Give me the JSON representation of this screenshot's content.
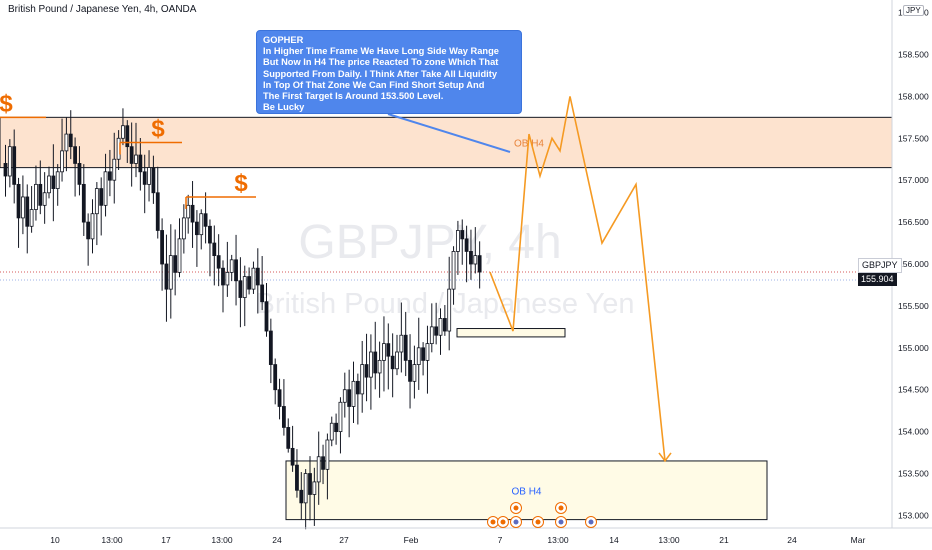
{
  "header": {
    "symbol_title": "British Pound / Japanese Yen, 4h, OANDA",
    "currency_badge": "JPY"
  },
  "watermark": {
    "ticker": "GBPJPY, 4h",
    "name": "British Pound / Japanese Yen"
  },
  "note": {
    "lines": [
      "GOPHER",
      "In Higher Time Frame We Have Long Side Way Range",
      "But Now In H4 The price Reacted To zone Which That",
      "Supported From Daily. I Think After Take All Liquidity",
      "In Top Of That Zone We Can Find  Short Setup And",
      "The First Target Is Around 153.500 Level.",
      "Be Lucky"
    ]
  },
  "price_tag": {
    "symbol": "GBPJPY",
    "value": "155.904"
  },
  "colors": {
    "up": "#131722",
    "down": "#131722",
    "supply_zone": "#fde3cf",
    "demand_zone": "#fffbe6",
    "projection": "#f59a23",
    "note": "#4f86ec",
    "current_price_line": "#d65a5a",
    "liquidity": "#ef6c00",
    "zone_label_top": "#e8833a",
    "zone_label_bottom": "#2962ff"
  },
  "chart_data": {
    "type": "candlestick",
    "timeframe": "4h",
    "y_axis": {
      "min": 152.85,
      "max": 159.15,
      "ticks": [
        "159.000",
        "158.500",
        "158.000",
        "157.500",
        "157.000",
        "156.500",
        "156.000",
        "155.500",
        "155.000",
        "154.500",
        "154.000",
        "153.500",
        "153.000"
      ]
    },
    "x_axis": {
      "ticks": [
        "10",
        "13:00",
        "17",
        "13:00",
        "24",
        "27",
        "Feb",
        "7",
        "13:00",
        "14",
        "13:00",
        "21",
        "24",
        "Mar"
      ]
    },
    "current_price": 155.904,
    "candles_close": [
      157.05,
      157.4,
      156.95,
      156.55,
      156.8,
      156.45,
      156.65,
      156.95,
      156.7,
      156.85,
      157.05,
      156.9,
      157.1,
      157.35,
      157.55,
      157.4,
      157.2,
      156.95,
      156.5,
      156.3,
      156.6,
      156.9,
      156.7,
      157.1,
      157.0,
      157.25,
      157.5,
      157.65,
      157.4,
      157.2,
      157.3,
      157.1,
      156.95,
      157.15,
      156.85,
      156.4,
      156.0,
      155.7,
      156.1,
      155.9,
      156.3,
      156.55,
      156.7,
      156.5,
      156.35,
      156.6,
      156.45,
      156.25,
      156.1,
      155.95,
      155.75,
      155.9,
      156.05,
      155.8,
      155.6,
      155.85,
      155.7,
      155.95,
      155.75,
      155.55,
      155.2,
      154.8,
      154.5,
      154.3,
      154.05,
      153.8,
      153.6,
      153.3,
      153.15,
      153.5,
      153.25,
      153.4,
      153.7,
      153.55,
      153.9,
      154.1,
      154.0,
      154.35,
      154.5,
      154.3,
      154.6,
      154.45,
      154.8,
      154.65,
      154.95,
      154.7,
      154.85,
      155.05,
      154.9,
      154.75,
      154.95,
      155.15,
      154.85,
      154.6,
      154.8,
      155.0,
      154.85,
      155.05,
      155.25,
      155.15,
      155.35,
      155.2,
      155.7,
      156.15,
      156.4,
      156.3,
      156.15,
      156.0,
      156.1,
      155.904
    ],
    "zones": [
      {
        "label": "OB H4",
        "top": 157.75,
        "bottom": 157.15,
        "type": "supply"
      },
      {
        "label": "OB H4",
        "top": 153.65,
        "bottom": 152.95,
        "type": "demand"
      },
      {
        "label": "",
        "top": 155.23,
        "bottom": 155.13,
        "type": "small"
      }
    ],
    "liquidity_levels": [
      {
        "label": "$",
        "price": 157.75
      },
      {
        "label": "$",
        "price": 157.45
      },
      {
        "label": "$",
        "price": 156.8
      }
    ],
    "projection_path": [
      155.904,
      155.2,
      157.55,
      157.05,
      157.5,
      157.35,
      158.0,
      156.25,
      156.95,
      153.65
    ]
  }
}
